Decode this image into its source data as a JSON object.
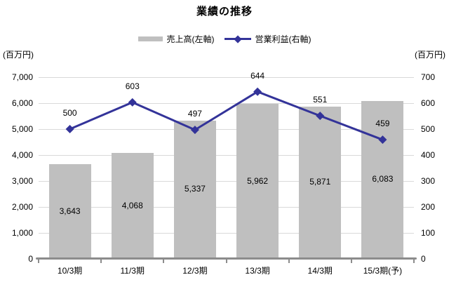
{
  "chart_data": {
    "type": "combo-bar-line",
    "title": "業績の推移",
    "categories": [
      "10/3期",
      "11/3期",
      "12/3期",
      "13/3期",
      "14/3期",
      "15/3期(予)"
    ],
    "series": [
      {
        "name": "売上高(左軸)",
        "type": "bar",
        "axis": "left",
        "color": "#bfbfbf",
        "values": [
          3643,
          4068,
          5337,
          5962,
          5871,
          6083
        ],
        "labels": [
          "3,643",
          "4,068",
          "5,337",
          "5,962",
          "5,871",
          "6,083"
        ]
      },
      {
        "name": "営業利益(右軸)",
        "type": "line",
        "axis": "right",
        "color": "#333399",
        "marker": "diamond",
        "values": [
          500,
          603,
          497,
          644,
          551,
          459
        ],
        "labels": [
          "500",
          "603",
          "497",
          "644",
          "551",
          "459"
        ]
      }
    ],
    "left_axis": {
      "unit": "(百万円)",
      "min": 0,
      "max": 7000,
      "step": 1000,
      "ticks": [
        "0",
        "1,000",
        "2,000",
        "3,000",
        "4,000",
        "5,000",
        "6,000",
        "7,000"
      ]
    },
    "right_axis": {
      "unit": "(百万円)",
      "min": 0,
      "max": 700,
      "step": 100,
      "ticks": [
        "0",
        "100",
        "200",
        "300",
        "400",
        "500",
        "600",
        "700"
      ]
    },
    "grid": true,
    "legend_position": "top",
    "style": {
      "gridline_color": "#d9d9d9",
      "axis_color": "#8c8c8c",
      "text_color": "#000000",
      "background": "#ffffff"
    }
  }
}
